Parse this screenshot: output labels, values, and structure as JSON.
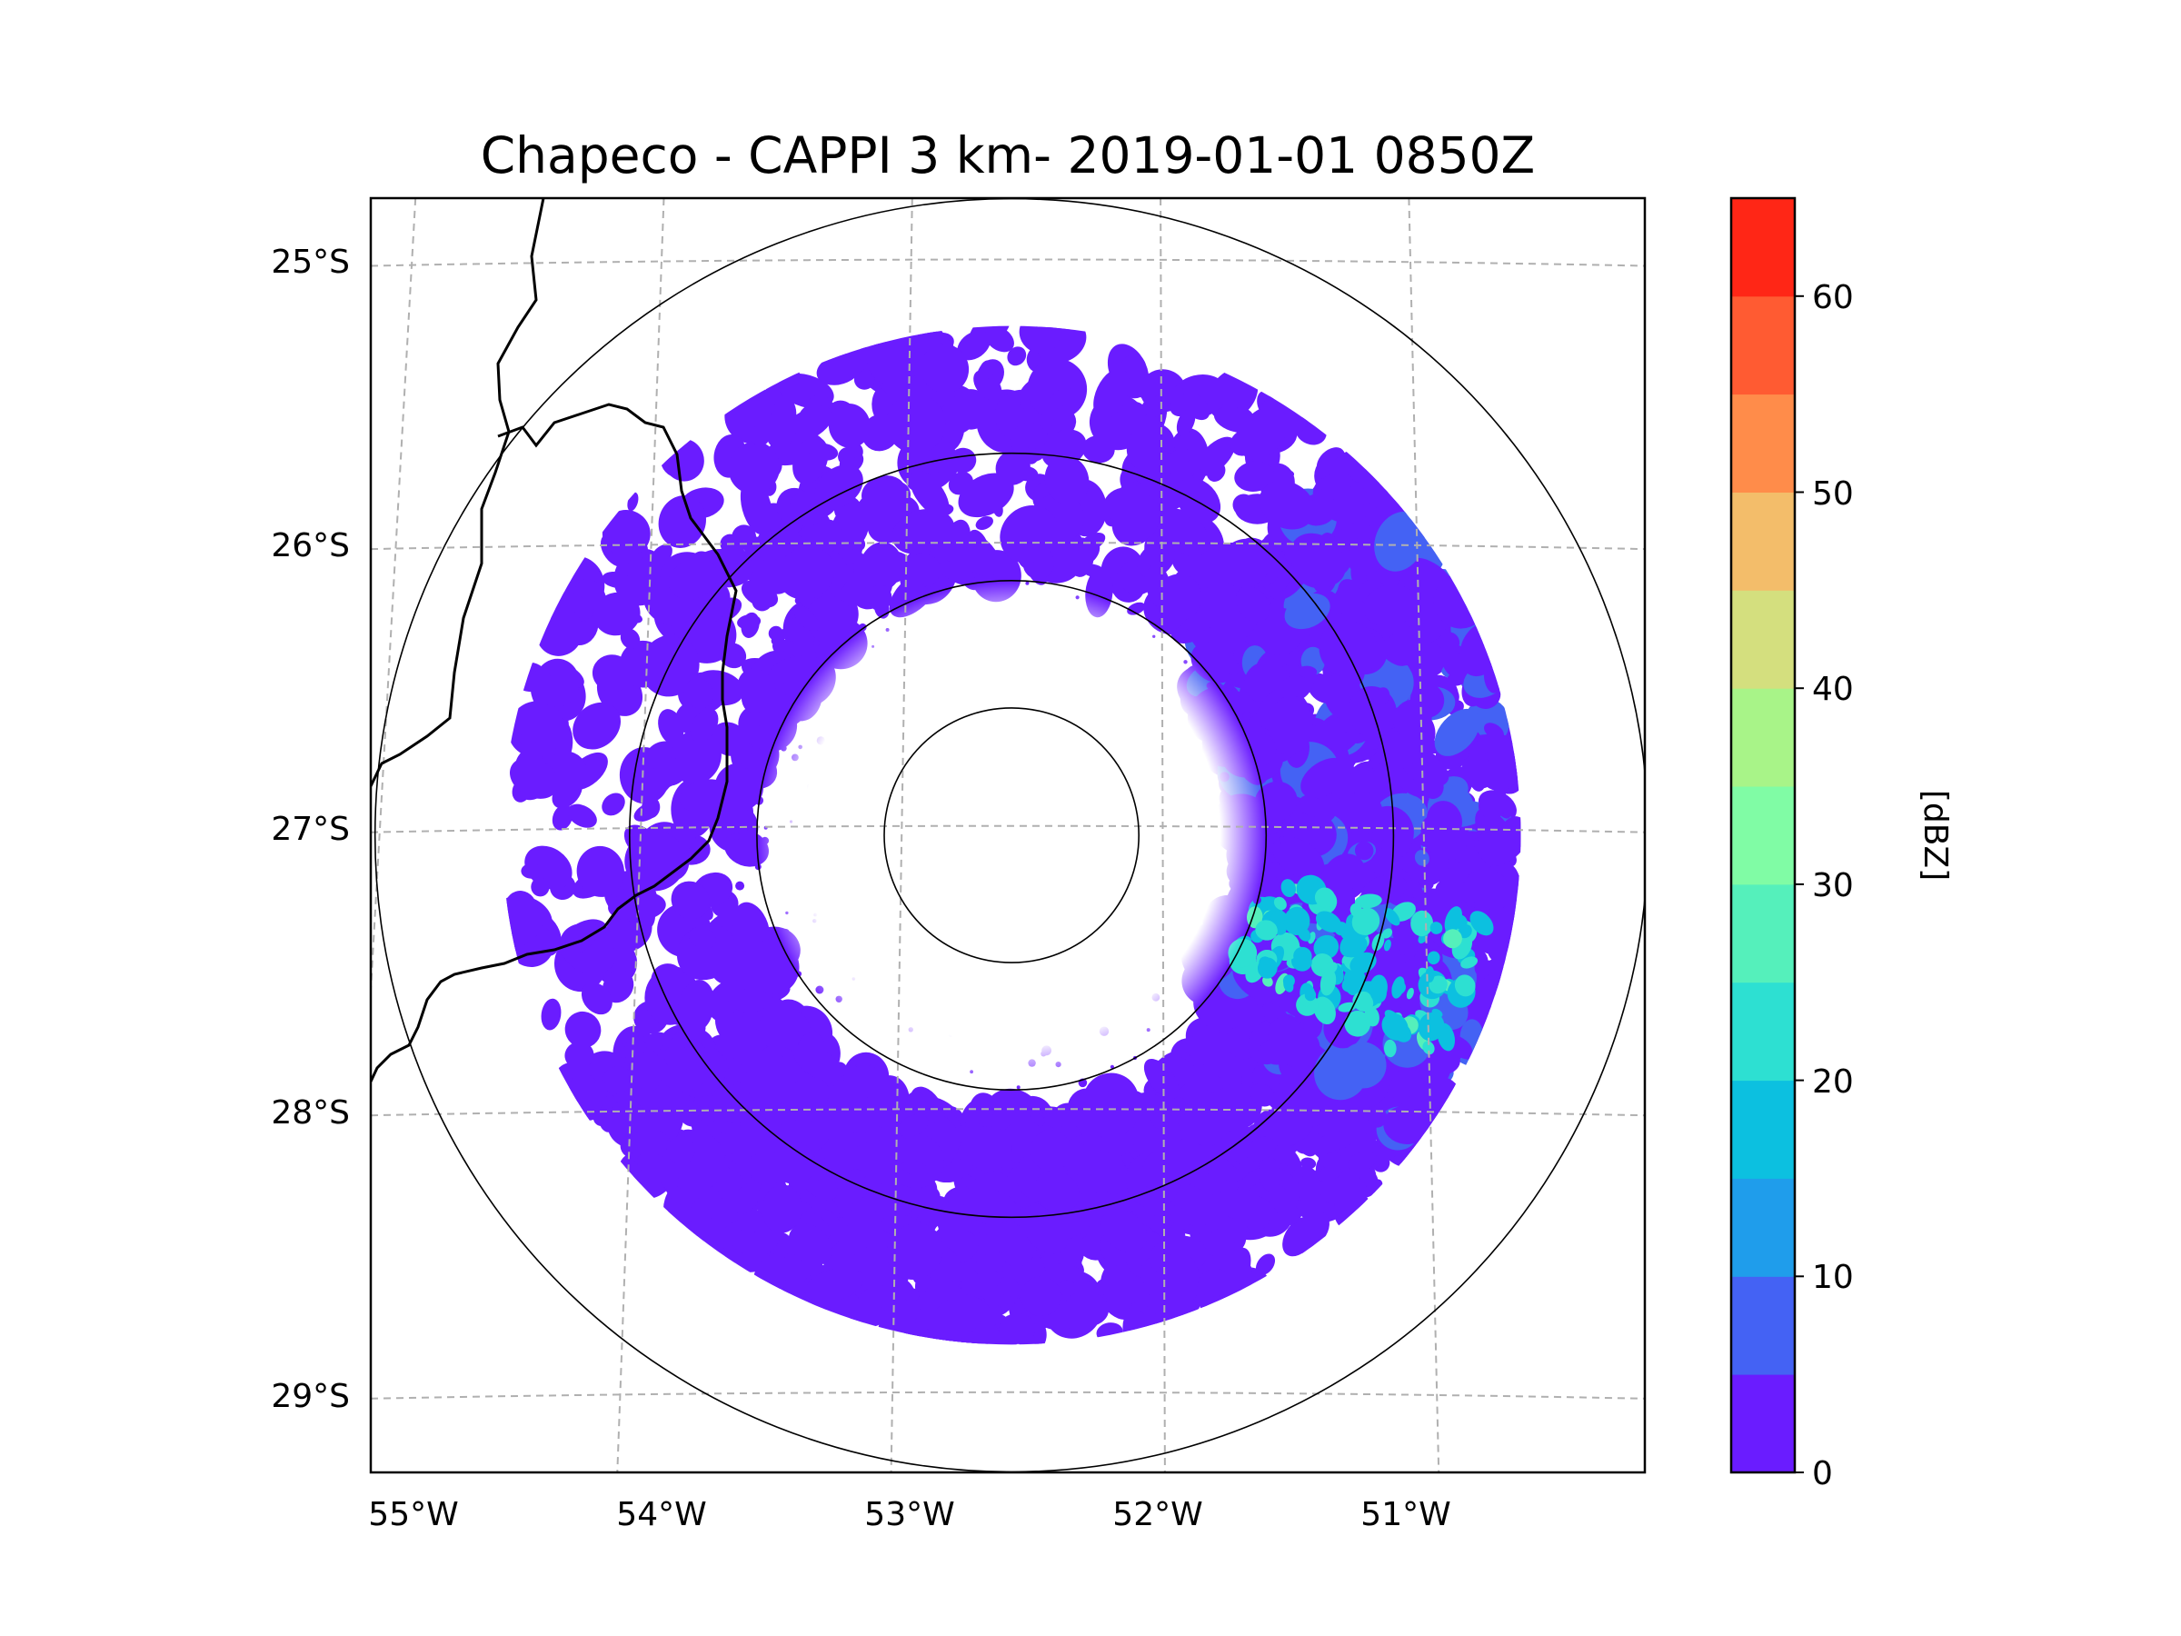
{
  "chart_data": {
    "type": "radar-map",
    "title": "Chapeco - CAPPI 3 km- 2019-01-01 0850Z",
    "radar_site": "Chapeco",
    "product": "CAPPI 3 km",
    "datetime": "2019-01-01 0850Z",
    "radar_center": {
      "lon": -52.6,
      "lat": -27.03
    },
    "lon_ticks": [
      "55°W",
      "54°W",
      "53°W",
      "52°W",
      "51°W"
    ],
    "lon_tick_values": [
      -55,
      -54,
      -53,
      -52,
      -51
    ],
    "lat_ticks": [
      "25°S",
      "26°S",
      "27°S",
      "28°S",
      "29°S"
    ],
    "lat_tick_values": [
      -25,
      -26,
      -27,
      -28,
      -29
    ],
    "lon_range": [
      -55.18,
      -50.05
    ],
    "lat_range": [
      -29.28,
      -24.78
    ],
    "range_rings_km": [
      50,
      100,
      150,
      250
    ],
    "data_extent_km": 200,
    "grid": true,
    "colorbar": {
      "label": "[dBZ]",
      "ticks": [
        "0",
        "10",
        "20",
        "30",
        "40",
        "50",
        "60"
      ],
      "tick_values": [
        0,
        10,
        20,
        30,
        40,
        50,
        60
      ],
      "range": [
        0,
        65
      ],
      "bounds": [
        0,
        5,
        10,
        15,
        20,
        25,
        30,
        35,
        40,
        45,
        50,
        55,
        60,
        65
      ],
      "colors": [
        "#6a1cff",
        "#4462f4",
        "#1f9deb",
        "#0cc0e0",
        "#2de0d2",
        "#55f0bb",
        "#80fca5",
        "#a8f488",
        "#d4df7e",
        "#f3bd6a",
        "#ff8c4a",
        "#ff5b32",
        "#ff2616"
      ]
    },
    "echo_regions": [
      {
        "name": "southern broad stratiform echo",
        "azimuth_deg": [
          120,
          240
        ],
        "range_km": [
          110,
          200
        ],
        "dbz_typical": 3
      },
      {
        "name": "eastern echo band",
        "azimuth_deg": [
          40,
          130
        ],
        "range_km": [
          90,
          200
        ],
        "dbz_typical": 4
      },
      {
        "name": "east-southeast enhanced streaks",
        "azimuth_deg": [
          100,
          120
        ],
        "range_km": [
          100,
          190
        ],
        "dbz_typical": 22
      },
      {
        "name": "northern scattered echoes",
        "azimuth_deg": [
          310,
          40
        ],
        "range_km": [
          100,
          200
        ],
        "dbz_typical": 3
      },
      {
        "name": "western scattered echoes",
        "azimuth_deg": [
          240,
          310
        ],
        "range_km": [
          100,
          200
        ],
        "dbz_typical": 2
      }
    ]
  }
}
